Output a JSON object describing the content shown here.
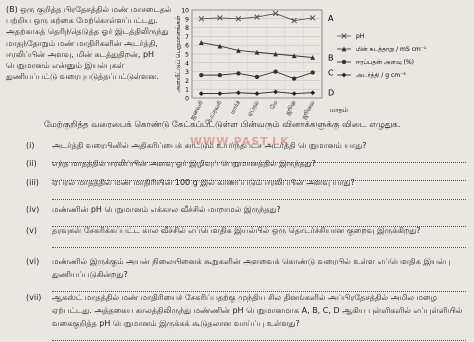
{
  "intro": "(B) ஒரு குறித்த பிரதேசத்தில் மண் மாசடைதல் பற்றிய ஒரு கற்கை மேற்கொள்ளப்பட்டது. அதற்காகத் தெரிந்தெடுத்த ஓர் இடத்திலிருந்து மாதந்தோறும் மண் மாதிரிகளின் அடர்த்தி, ஈரலிப்பின் அளவு, மின் கடத்துதிறன், pH பெறுமானம் என்னும் இயல்புகள் துணியப்பட்டு வரைபுபடுத்தப்பட்டுள்ளன.",
  "instruction": "மேற்குறித்த வரைபைக் கொண்டு கேட்கப்பட்டுள்ள பின்வரும் வினாக்களுக்கு விடை எழுதுக.",
  "watermark": "WWW.PAST.LK",
  "questions": [
    {
      "label": "(i)",
      "text": "அடர்த்தி வரைபினில் அதிகரிப்பைக் காட்டும் உயர்ந்தபட்ச அடர்த்தி பெறுமானம் யாது?"
    },
    {
      "label": "(ii)",
      "text": "எந்த மாதத்தில் ஈரலிப்பின் அளவு ஓர் இழிவுப் பெறுமானத்தில் இருந்தது?"
    },
    {
      "label": "(iii)",
      "text": "ஏப்ரல் மாதத்தில் மண் மாதிரியின் 100 g இல் காணப்படும் ஈரலிப்பின் அளவு யாது?"
    },
    {
      "label": "(iv)",
      "text": "மண்ணின் pH பெறுமானம் எக்கால வீச்சில் மாறாமல் இருந்தது?"
    },
    {
      "label": "(v)",
      "text": "தரவுகள் சேகரிக்கப்பட்ட கால வீச்சில் எப்பௌதிக இயல்பில் ஒரு தொடர்ச்சியான குறைவு இருக்கிறது?"
    },
    {
      "label": "(vi)",
      "text": "மண்ணில் இருக்கும் அயன் நிலையினைக் கூறுகளின் அளவைக் கொண்டு வரைபில் உள்ள எப்பௌதிக இயல்பு துணியப்படுகின்றது?"
    },
    {
      "label": "(vii)",
      "text": "ஆகஸ்ட் மாதத்தில் மண் மாதிரியைச் சேகரிப்பதற்கு முந்திய சில தினங்களில் அப்பிரதேசத்தில் அமில மழை ஏற்பட்டது. அத்தகைய காலத்திலிருந்து மண்ணின் pH பெறுமானமாக A, B, C, D ஆகிய புள்ளிகளில் எப்புள்ளியில் வகைகுறித்த pH பெறுமானம் இருக்கக் கூடுதலான வாய்ப்பு உள்ளது?"
    }
  ],
  "chart_data": {
    "type": "line",
    "y_label": "அளவீட்டுப் பெறுமானங்கள்",
    "x_label": "மாதம்",
    "categories": [
      "ஜனவரி",
      "பெப்ரவரி",
      "மார்ச்",
      "ஏப்ரல்",
      "மே",
      "ஜூன்",
      "ஜூலை"
    ],
    "ylim": [
      0,
      10
    ],
    "yticks": [
      0,
      1,
      2,
      3,
      4,
      5,
      6,
      7,
      8,
      9,
      10
    ],
    "grid": true,
    "series": [
      {
        "name": "pH",
        "point_label": "A",
        "marker": "x",
        "color": "#555555",
        "values": [
          9.0,
          9.1,
          9.0,
          9.2,
          9.6,
          8.8,
          9.1
        ]
      },
      {
        "name": "மின் கடத்தாறு / mS cm⁻¹",
        "point_label": "B",
        "marker": "triangle",
        "color": "#333333",
        "values": [
          6.3,
          5.9,
          5.4,
          5.2,
          5.0,
          4.8,
          4.6
        ]
      },
      {
        "name": "ஈரப்பதன் அளவு (%)",
        "point_label": "C",
        "marker": "circle",
        "color": "#333333",
        "values": [
          2.6,
          2.6,
          2.8,
          2.4,
          3.0,
          2.2,
          2.9
        ]
      },
      {
        "name": "அடர்த்தி / g cm⁻³",
        "point_label": "D",
        "marker": "diamond",
        "color": "#222222",
        "values": [
          0.5,
          0.5,
          0.6,
          0.5,
          0.7,
          0.5,
          0.6
        ]
      }
    ]
  }
}
